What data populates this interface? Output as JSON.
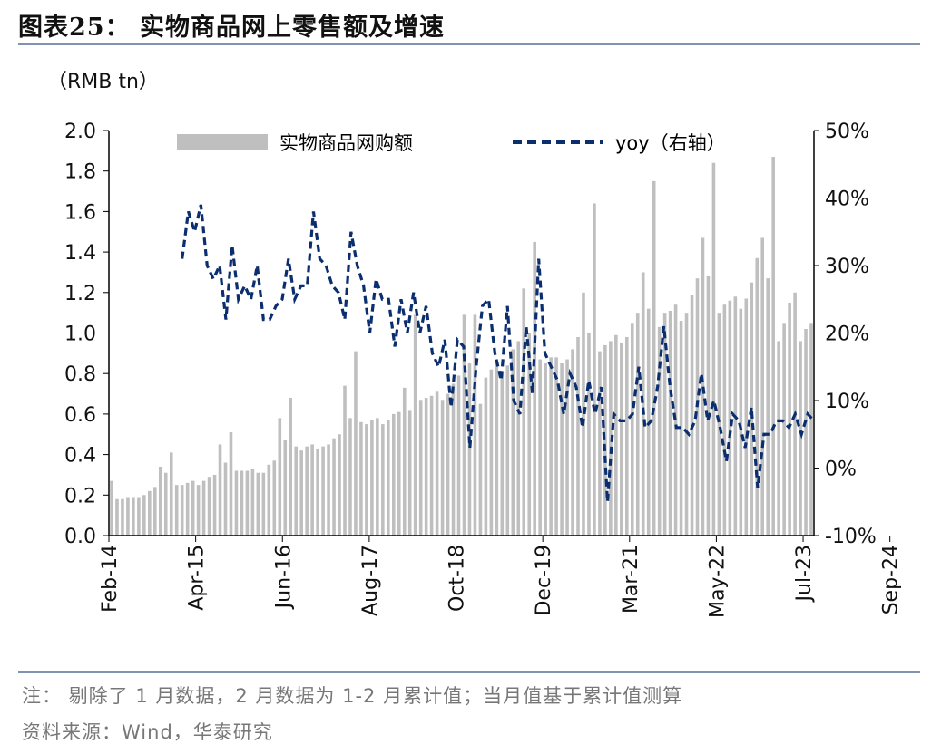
{
  "figure": {
    "title": "图表25：  实物商品网上零售额及增速",
    "unit_label": "（RMB tn）",
    "note": "注：  剔除了 1 月数据，2 月数据为 1-2 月累计值；当月值基于累计值测算",
    "source": "资料来源：Wind，华泰研究"
  },
  "colors": {
    "bar": "#bfbfbf",
    "line": "#0b2e6f",
    "text": "#111111",
    "rule": "#8093b3"
  },
  "chart_data": {
    "type": "bar",
    "title": "",
    "legend": {
      "bar_label": "实物商品网购额",
      "line_label": "yoy（右轴）",
      "placement": "top"
    },
    "y_left": {
      "min": 0.0,
      "max": 2.0,
      "ticks": [
        "0.0",
        "0.2",
        "0.4",
        "0.6",
        "0.8",
        "1.0",
        "1.2",
        "1.4",
        "1.6",
        "1.8",
        "2.0"
      ]
    },
    "y_right": {
      "min": -10,
      "max": 50,
      "ticks": [
        "-10%",
        "0%",
        "10%",
        "20%",
        "30%",
        "40%",
        "50%"
      ]
    },
    "x_ticks": [
      "Feb-14",
      "Apr-15",
      "Jun-16",
      "Aug-17",
      "Oct-18",
      "Dec-19",
      "Mar-21",
      "May-22",
      "Jul-23",
      "Sep-24"
    ],
    "series": [
      {
        "name": "实物商品网购额",
        "type": "bar",
        "axis": "left",
        "values": [
          0.27,
          0.18,
          0.18,
          0.19,
          0.19,
          0.19,
          0.2,
          0.22,
          0.24,
          0.34,
          0.31,
          0.41,
          0.25,
          0.25,
          0.26,
          0.27,
          0.25,
          0.27,
          0.29,
          0.3,
          0.45,
          0.36,
          0.51,
          0.32,
          0.32,
          0.32,
          0.33,
          0.31,
          0.31,
          0.35,
          0.37,
          0.58,
          0.47,
          0.68,
          0.44,
          0.42,
          0.44,
          0.45,
          0.43,
          0.44,
          0.45,
          0.48,
          0.5,
          0.74,
          0.58,
          0.91,
          0.56,
          0.55,
          0.57,
          0.58,
          0.55,
          0.57,
          0.6,
          0.61,
          0.73,
          0.62,
          1.09,
          0.67,
          0.68,
          0.69,
          0.71,
          0.67,
          0.7,
          0.75,
          0.79,
          1.09,
          0.85,
          1.09,
          0.65,
          0.78,
          0.82,
          0.85,
          0.81,
          0.84,
          0.92,
          0.96,
          1.22,
          1.0,
          1.45,
          0.87,
          0.85,
          0.88,
          0.88,
          0.85,
          0.87,
          0.92,
          0.98,
          1.2,
          1.0,
          1.64,
          0.91,
          0.94,
          0.96,
          0.99,
          0.95,
          0.98,
          1.05,
          1.1,
          1.3,
          1.12,
          1.75,
          1.03,
          1.1,
          1.11,
          1.14,
          1.06,
          1.1,
          1.19,
          1.27,
          1.47,
          1.28,
          1.84,
          1.1,
          1.14,
          1.16,
          1.18,
          1.12,
          1.17,
          1.25,
          1.37,
          1.47,
          1.27,
          1.87,
          0.96,
          1.05,
          1.15,
          1.2,
          0.96,
          1.02,
          1.05
        ]
      },
      {
        "name": "yoy（右轴）",
        "type": "line",
        "axis": "right",
        "values": [
          31,
          38,
          35,
          39,
          30,
          28,
          30,
          22,
          33,
          25,
          27,
          25,
          30,
          22,
          22,
          24,
          25,
          31,
          25,
          27,
          27,
          38,
          31,
          30,
          27,
          26,
          22,
          35,
          30,
          27,
          20,
          28,
          25,
          25,
          18,
          25,
          20,
          26,
          20,
          24,
          17,
          15,
          19,
          9,
          19,
          18,
          3,
          15,
          24,
          25,
          17,
          13,
          24,
          10,
          8,
          21,
          11,
          31,
          17,
          15,
          13,
          8,
          14,
          12,
          6,
          13,
          8,
          12,
          -5,
          8,
          7,
          7,
          8,
          15,
          6,
          7,
          12,
          21,
          12,
          6,
          6,
          5,
          7,
          14,
          7,
          10,
          6,
          1,
          8,
          7,
          3,
          9,
          -3,
          5,
          5,
          7,
          7,
          6,
          8,
          5,
          8,
          7
        ]
      }
    ]
  }
}
